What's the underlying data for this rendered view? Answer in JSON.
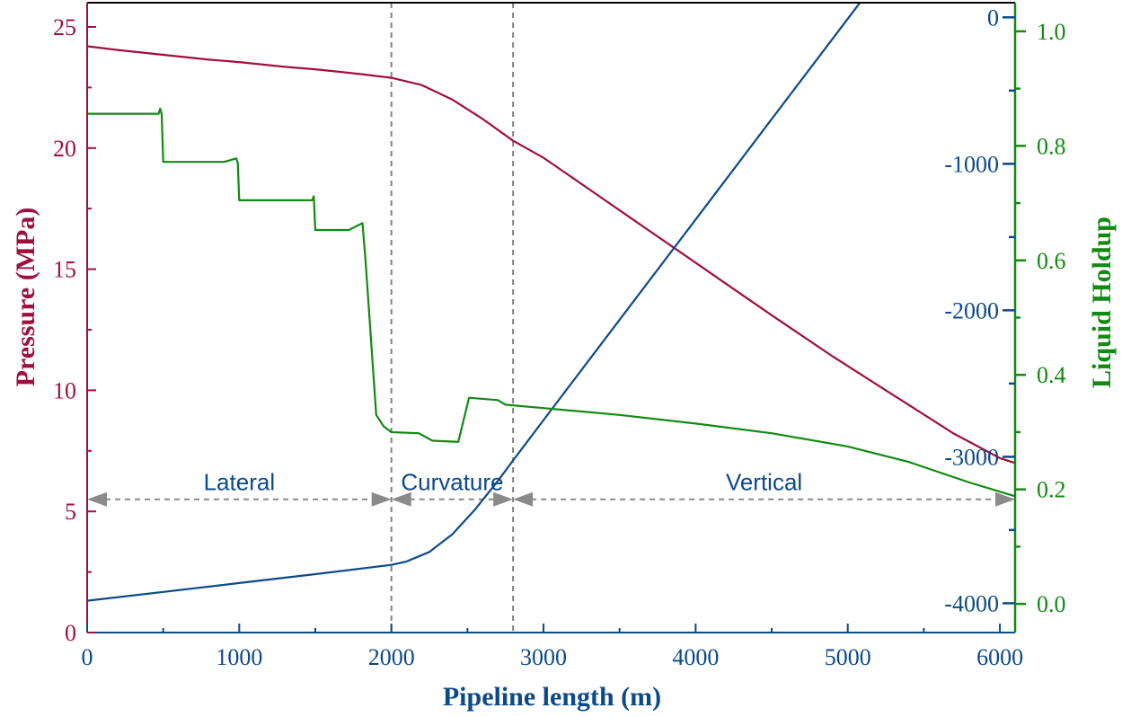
{
  "chart_data": {
    "type": "line",
    "xlabel": "Pipeline length (m)",
    "xlim": [
      0,
      6100
    ],
    "xticks": [
      0,
      1000,
      2000,
      3000,
      4000,
      5000,
      6000
    ],
    "y_left": {
      "label": "Pressure (MPa)",
      "lim": [
        0,
        26
      ],
      "ticks": [
        0,
        5,
        10,
        15,
        20,
        25
      ],
      "color": "#a0103c"
    },
    "y_right_inner": {
      "label": "",
      "lim": [
        -4200,
        100
      ],
      "ticks": [
        0,
        -1000,
        -2000,
        -3000,
        -4000
      ],
      "color": "#0b4a8a"
    },
    "y_right_outer": {
      "label": "Liquid Holdup",
      "lim": [
        -0.05,
        1.05
      ],
      "ticks": [
        0.0,
        0.2,
        0.4,
        0.6,
        0.8,
        1.0
      ],
      "tick_labels": [
        "0.0",
        "0.2",
        "0.4",
        "0.6",
        "0.8",
        "1.0"
      ],
      "color": "#128a12"
    },
    "vlines": [
      2000,
      2800
    ],
    "regions": [
      {
        "label": "Lateral",
        "x_start": 0,
        "x_end": 2000,
        "label_x": 1000
      },
      {
        "label": "Curvature",
        "x_start": 2000,
        "x_end": 2800,
        "label_x": 2400
      },
      {
        "label": "Vertical",
        "x_start": 2800,
        "x_end": 6100,
        "label_x": 4450
      }
    ],
    "region_arrow_pressure": 5.5,
    "series": [
      {
        "name": "Pressure",
        "axis": "y_left",
        "color": "#a0103c",
        "x": [
          0,
          200,
          500,
          800,
          1000,
          1300,
          1500,
          1800,
          2000,
          2200,
          2400,
          2600,
          2800,
          3000,
          3300,
          3600,
          3900,
          4200,
          4500,
          4900,
          5300,
          5700,
          6000,
          6100
        ],
        "y": [
          24.2,
          24.05,
          23.85,
          23.65,
          23.55,
          23.35,
          23.25,
          23.05,
          22.9,
          22.6,
          22.0,
          21.2,
          20.3,
          19.6,
          18.3,
          17.0,
          15.7,
          14.4,
          13.1,
          11.4,
          9.8,
          8.2,
          7.2,
          7.0
        ]
      },
      {
        "name": "Depth",
        "axis": "y_right_inner",
        "color": "#0b4a8a",
        "x": [
          0,
          500,
          1000,
          1500,
          2000,
          2100,
          2250,
          2400,
          2550,
          2700,
          2800,
          3000,
          3500,
          4000,
          4500,
          5000,
          5500,
          6100
        ],
        "y": [
          -3983,
          -3923,
          -3862,
          -3801,
          -3738,
          -3715,
          -3650,
          -3530,
          -3360,
          -3165,
          -3025,
          -2750,
          -2065,
          -1380,
          -695,
          -10,
          675,
          1500
        ]
      },
      {
        "name": "Liquid Holdup",
        "axis": "y_right_outer",
        "color": "#128a12",
        "x": [
          0,
          470,
          480,
          490,
          500,
          900,
          980,
          990,
          1000,
          1480,
          1490,
          1500,
          1720,
          1810,
          1830,
          1900,
          1950,
          2000,
          2180,
          2270,
          2440,
          2510,
          2700,
          2750,
          3000,
          3500,
          4000,
          4500,
          5000,
          5400,
          5800,
          6100
        ],
        "y": [
          0.856,
          0.856,
          0.865,
          0.855,
          0.772,
          0.772,
          0.778,
          0.77,
          0.705,
          0.705,
          0.712,
          0.653,
          0.653,
          0.665,
          0.6,
          0.33,
          0.31,
          0.3,
          0.298,
          0.285,
          0.283,
          0.36,
          0.356,
          0.348,
          0.342,
          0.33,
          0.315,
          0.298,
          0.275,
          0.248,
          0.212,
          0.188
        ]
      }
    ]
  }
}
